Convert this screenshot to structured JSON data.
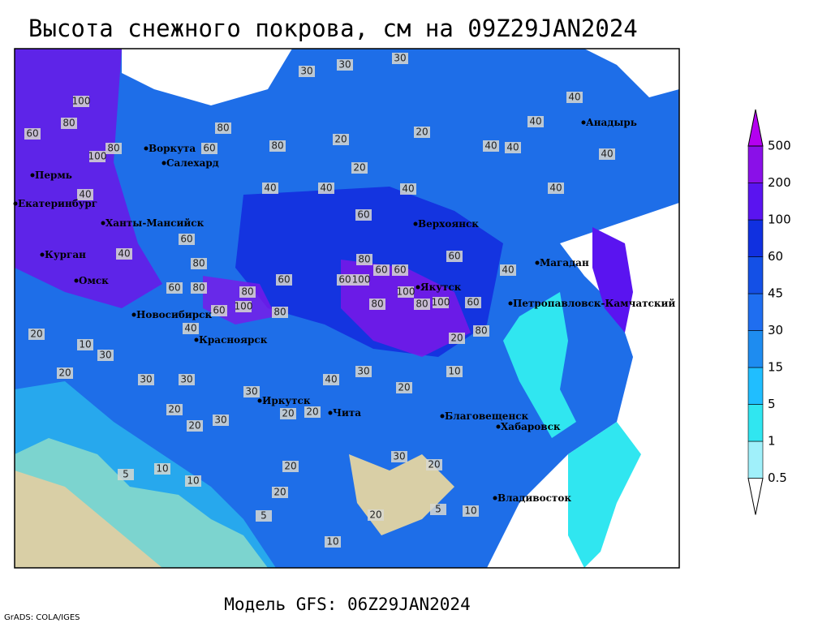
{
  "title": "Высота снежного покрова, см на 09Z29JAN2024",
  "subtitle": "Модель GFS: 06Z29JAN2024",
  "credit": "GrADS: COLA/IGES",
  "colorbar": {
    "levels": [
      0.5,
      1,
      5,
      15,
      30,
      45,
      60,
      100,
      200,
      500
    ],
    "colors": [
      "#ffffff",
      "#a0f0fa",
      "#30e6f0",
      "#20beff",
      "#1e8cf0",
      "#1f6ef0",
      "#1450e6",
      "#1030e0",
      "#5a14f0",
      "#8a10e8",
      "#b400f0"
    ]
  },
  "cities": [
    "Воркута",
    "Салехард",
    "Пермь",
    "Екатеринбург",
    "Ханты-Мансийск",
    "Курган",
    "Омск",
    "Новосибирск",
    "Красноярск",
    "Иркутск",
    "Чита",
    "Верхоянск",
    "Якутск",
    "Магадан",
    "Анадырь",
    "Петропавловск-Камчатский",
    "Благовещенск",
    "Хабаровск",
    "Владивосток"
  ],
  "contour_labels": [
    30,
    30,
    30,
    100,
    80,
    60,
    100,
    80,
    80,
    60,
    20,
    80,
    20,
    20,
    40,
    40,
    40,
    40,
    40,
    40,
    40,
    40,
    60,
    40,
    60,
    40,
    80,
    60,
    60,
    100,
    60,
    100,
    80,
    100,
    60,
    80,
    20,
    80,
    60,
    80,
    80,
    100,
    60,
    80,
    60,
    60,
    80,
    40,
    40,
    40,
    20,
    10,
    20,
    30,
    30,
    30,
    30,
    20,
    20,
    20,
    30,
    40,
    30,
    20,
    10,
    20,
    20,
    20,
    10,
    5,
    10,
    5,
    20,
    10,
    10,
    30,
    5,
    20
  ]
}
